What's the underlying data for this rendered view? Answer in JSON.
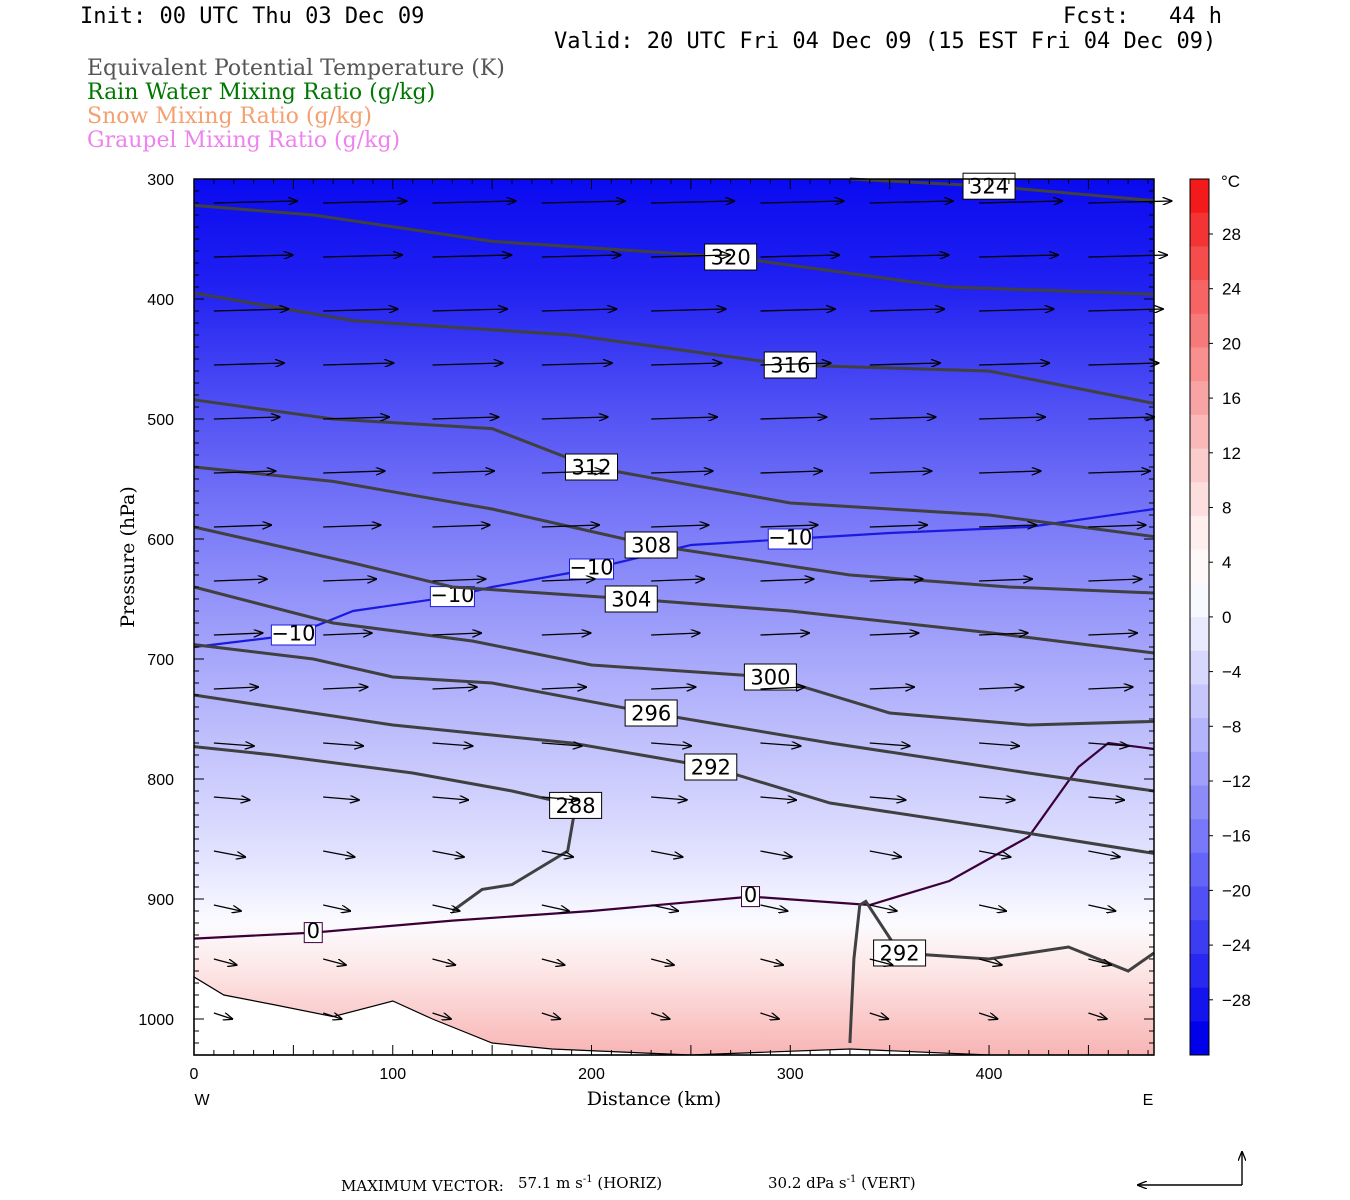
{
  "header": {
    "init": "Init: 00 UTC Thu 03 Dec 09",
    "fcst": "Fcst:   44 h",
    "valid": "Valid: 20 UTC Fri 04 Dec 09 (15 EST Fri 04 Dec 09)"
  },
  "legend": [
    {
      "text": "Equivalent Potential Temperature (K)",
      "color": "#555555"
    },
    {
      "text": "Rain Water Mixing Ratio (g/kg)",
      "color": "#007700"
    },
    {
      "text": "Snow Mixing Ratio (g/kg)",
      "color": "#f4a070"
    },
    {
      "text": "Graupel Mixing Ratio (g/kg)",
      "color": "#ee82ee"
    }
  ],
  "footer": {
    "max_vector_label": "MAXIMUM VECTOR:",
    "horiz_value": "57.1 m s",
    "horiz_exp": "-1",
    "horiz_unit": " (HORIZ)",
    "vert_value": "30.2 dPa s",
    "vert_exp": "-1",
    "vert_unit": " (VERT)"
  },
  "chart_data": {
    "type": "cross-section contour",
    "xlabel": "Distance (km)",
    "ylabel": "Pressure (hPa)",
    "x_ticks": [
      0,
      100,
      200,
      300,
      400
    ],
    "y_ticks": [
      300,
      400,
      500,
      600,
      700,
      800,
      900,
      1000
    ],
    "xlim": [
      0,
      483
    ],
    "ylim": [
      1030,
      300
    ],
    "x_end_labels": {
      "left": "W",
      "right": "E"
    },
    "colorbar": {
      "unit": "°C",
      "labels": [
        "28",
        "24",
        "20",
        "16",
        "12",
        "8",
        "4",
        "0",
        "−4",
        "−8",
        "−12",
        "−16",
        "−20",
        "−24",
        "−28"
      ],
      "colors": [
        "#f21a1a",
        "#f43434",
        "#f54c4c",
        "#f66464",
        "#f77a7a",
        "#f89090",
        "#f9a4a4",
        "#fab8b8",
        "#fbcccc",
        "#fcdede",
        "#feeeee",
        "#fff8f8",
        "#f8f8ff",
        "#eaeaff",
        "#d8d8fe",
        "#c6c6fd",
        "#b4b4fc",
        "#a0a0fb",
        "#8c8cf9",
        "#7878f8",
        "#6464f6",
        "#5050f4",
        "#3c3cf2",
        "#2828f0",
        "#1414ee",
        "#0000ea"
      ]
    },
    "theta_e_isentropes_K": [
      {
        "value": "324",
        "points": [
          [
            330,
            300
          ],
          [
            400,
            306
          ],
          [
            483,
            318
          ]
        ]
      },
      {
        "value": "320",
        "points": [
          [
            0,
            322
          ],
          [
            60,
            330
          ],
          [
            150,
            352
          ],
          [
            270,
            365
          ],
          [
            380,
            390
          ],
          [
            483,
            396
          ]
        ]
      },
      {
        "value": "316",
        "points": [
          [
            0,
            395
          ],
          [
            80,
            418
          ],
          [
            190,
            430
          ],
          [
            300,
            455
          ],
          [
            400,
            460
          ],
          [
            483,
            487
          ]
        ]
      },
      {
        "value": "312",
        "points": [
          [
            0,
            484
          ],
          [
            70,
            500
          ],
          [
            150,
            508
          ],
          [
            200,
            540
          ],
          [
            300,
            570
          ],
          [
            400,
            580
          ],
          [
            483,
            598
          ]
        ]
      },
      {
        "value": "308",
        "points": [
          [
            0,
            540
          ],
          [
            70,
            552
          ],
          [
            150,
            575
          ],
          [
            230,
            605
          ],
          [
            330,
            630
          ],
          [
            410,
            640
          ],
          [
            483,
            645
          ]
        ]
      },
      {
        "value": "304",
        "points": [
          [
            0,
            590
          ],
          [
            80,
            620
          ],
          [
            130,
            640
          ],
          [
            220,
            650
          ],
          [
            300,
            660
          ],
          [
            400,
            678
          ],
          [
            483,
            695
          ]
        ]
      },
      {
        "value": "300",
        "points": [
          [
            0,
            640
          ],
          [
            70,
            670
          ],
          [
            140,
            685
          ],
          [
            200,
            705
          ],
          [
            290,
            715
          ],
          [
            350,
            745
          ],
          [
            420,
            755
          ],
          [
            483,
            752
          ]
        ]
      },
      {
        "value": "296",
        "points": [
          [
            0,
            688
          ],
          [
            60,
            700
          ],
          [
            100,
            715
          ],
          [
            150,
            720
          ],
          [
            230,
            745
          ],
          [
            320,
            770
          ],
          [
            420,
            795
          ],
          [
            483,
            810
          ]
        ]
      },
      {
        "value": "292",
        "points": [
          [
            0,
            730
          ],
          [
            100,
            755
          ],
          [
            190,
            770
          ],
          [
            260,
            790
          ],
          [
            320,
            820
          ],
          [
            400,
            840
          ],
          [
            483,
            862
          ]
        ]
      },
      {
        "value": "288",
        "points": [
          [
            0,
            773
          ],
          [
            40,
            780
          ],
          [
            110,
            795
          ],
          [
            160,
            810
          ],
          [
            192,
            822
          ],
          [
            188,
            860
          ],
          [
            160,
            888
          ],
          [
            145,
            892
          ],
          [
            130,
            910
          ]
        ]
      },
      {
        "value": "292",
        "points": [
          [
            330,
            1020
          ],
          [
            332,
            950
          ],
          [
            335,
            905
          ],
          [
            338,
            902
          ],
          [
            355,
            945
          ],
          [
            400,
            950
          ],
          [
            440,
            940
          ],
          [
            470,
            960
          ],
          [
            483,
            945
          ]
        ]
      }
    ],
    "isotherm_minus10C": {
      "value": "−10",
      "points": [
        [
          0,
          690
        ],
        [
          50,
          680
        ],
        [
          80,
          660
        ],
        [
          130,
          648
        ],
        [
          150,
          640
        ],
        [
          200,
          625
        ],
        [
          250,
          605
        ],
        [
          300,
          600
        ],
        [
          350,
          595
        ],
        [
          420,
          590
        ],
        [
          483,
          575
        ]
      ]
    },
    "isotherm_0C": {
      "value": "0",
      "points": [
        [
          0,
          933
        ],
        [
          60,
          928
        ],
        [
          130,
          918
        ],
        [
          200,
          910
        ],
        [
          280,
          898
        ],
        [
          340,
          905
        ],
        [
          380,
          885
        ],
        [
          420,
          848
        ],
        [
          445,
          790
        ],
        [
          460,
          770
        ],
        [
          483,
          775
        ]
      ]
    }
  }
}
